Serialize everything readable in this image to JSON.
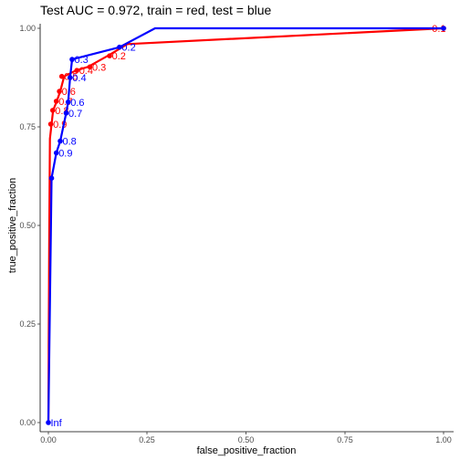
{
  "chart_data": {
    "type": "line",
    "title": "Test AUC = 0.972, train = red, test = blue",
    "xlabel": "false_positive_fraction",
    "ylabel": "true_positive_fraction",
    "xlim": [
      0,
      1
    ],
    "ylim": [
      0,
      1
    ],
    "x_ticks": [
      "0.00",
      "0.25",
      "0.50",
      "0.75",
      "1.00"
    ],
    "y_ticks": [
      "0.00",
      "0.25",
      "0.50",
      "0.75",
      "1.00"
    ],
    "grid": false,
    "legend": "none",
    "series": [
      {
        "color": "#ff0000",
        "x": [
          0.0,
          0.002,
          0.004,
          0.008,
          0.012,
          0.02,
          0.03,
          0.04,
          0.07,
          0.1,
          0.15,
          0.2,
          1.0
        ],
        "y": [
          0.0,
          0.45,
          0.72,
          0.757,
          0.792,
          0.812,
          0.84,
          0.878,
          0.893,
          0.902,
          0.93,
          0.96,
          1.0
        ],
        "points": [
          {
            "x": 0.006,
            "y": 0.757,
            "label": "0.9"
          },
          {
            "x": 0.011,
            "y": 0.792,
            "label": "0.8"
          },
          {
            "x": 0.02,
            "y": 0.815,
            "label": "0.7"
          },
          {
            "x": 0.028,
            "y": 0.84,
            "label": "0.6"
          },
          {
            "x": 0.034,
            "y": 0.878,
            "label": "0.5"
          },
          {
            "x": 0.072,
            "y": 0.893,
            "label": "0.4"
          },
          {
            "x": 0.105,
            "y": 0.902,
            "label": "0.3"
          },
          {
            "x": 0.155,
            "y": 0.93,
            "label": "0.2"
          },
          {
            "x": 1.0,
            "y": 1.0,
            "label": "0.1"
          }
        ]
      },
      {
        "color": "#0000ff",
        "x": [
          0.0,
          0.008,
          0.02,
          0.03,
          0.045,
          0.05,
          0.055,
          0.06,
          0.18,
          0.27,
          1.0
        ],
        "y": [
          0.0,
          0.62,
          0.684,
          0.714,
          0.785,
          0.813,
          0.875,
          0.921,
          0.952,
          1.0,
          1.0
        ],
        "points": [
          {
            "x": 0.0,
            "y": 0.0,
            "label": "Inf"
          },
          {
            "x": 0.008,
            "y": 0.62,
            "label": ""
          },
          {
            "x": 0.02,
            "y": 0.684,
            "label": "0.9"
          },
          {
            "x": 0.03,
            "y": 0.714,
            "label": "0.8"
          },
          {
            "x": 0.045,
            "y": 0.785,
            "label": "0.7"
          },
          {
            "x": 0.05,
            "y": 0.813,
            "label": "0.6"
          },
          {
            "x": 0.055,
            "y": 0.875,
            "label": "0.4"
          },
          {
            "x": 0.06,
            "y": 0.921,
            "label": "0.3"
          },
          {
            "x": 0.18,
            "y": 0.952,
            "label": "0.2"
          },
          {
            "x": 1.0,
            "y": 1.0,
            "label": ""
          }
        ]
      }
    ]
  }
}
